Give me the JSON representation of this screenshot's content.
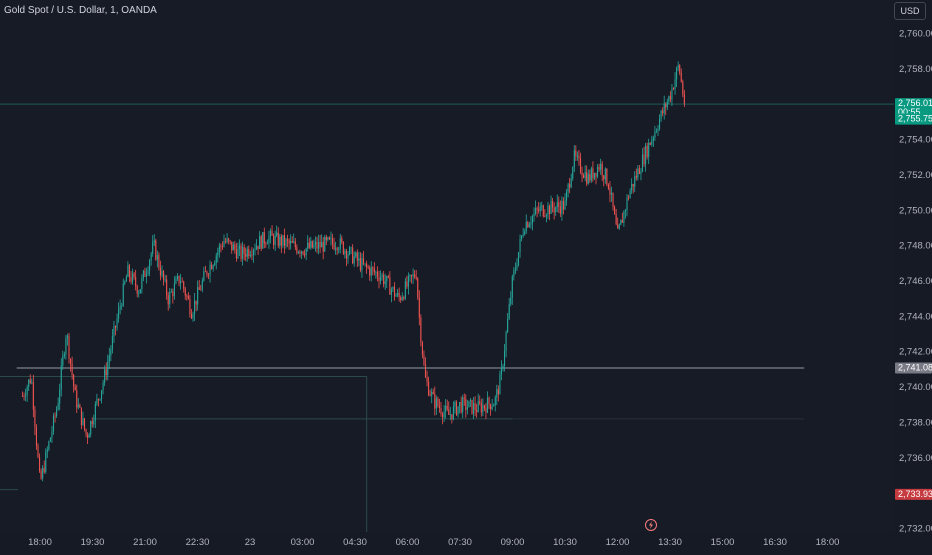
{
  "header": {
    "symbol_title": "Gold Spot / U.S. Dollar, 1, OANDA",
    "currency_button": "USD"
  },
  "colors": {
    "up": "#26a69a",
    "down": "#ef5350",
    "profit_zone": "#1f4a45",
    "loss_zone": "#4a2a32",
    "last_price_badge": "#089981",
    "tp_badge": "#089981",
    "entry_badge": "#787b86",
    "sl_badge": "#c53b40",
    "grid": "#1f2330",
    "price_line": "#26a69a"
  },
  "chart_data": {
    "type": "candlestick",
    "title": "Gold Spot / U.S. Dollar, 1, OANDA",
    "y_axis": {
      "ticks": [
        "2,732.000",
        "2,734.000",
        "2,736.000",
        "2,738.000",
        "2,740.000",
        "2,742.000",
        "2,744.000",
        "2,746.000",
        "2,748.000",
        "2,750.000",
        "2,752.000",
        "2,754.000",
        "2,756.000",
        "2,758.000",
        "2,760.000"
      ],
      "ylim": [
        2731.8,
        2761.9
      ],
      "position": "right"
    },
    "x_axis": {
      "ticks": [
        "18:00",
        "19:30",
        "21:00",
        "22:30",
        "23",
        "03:00",
        "04:30",
        "06:00",
        "07:30",
        "09:00",
        "10:30",
        "12:00",
        "13:30",
        "15:00",
        "16:30",
        "18:00"
      ]
    },
    "price_path": [
      {
        "t": "17:30",
        "p": 2739.5
      },
      {
        "t": "17:45",
        "p": 2740.6
      },
      {
        "t": "18:00",
        "p": 2734.5
      },
      {
        "t": "18:30",
        "p": 2739.0
      },
      {
        "t": "18:45",
        "p": 2743.2
      },
      {
        "t": "19:00",
        "p": 2739.5
      },
      {
        "t": "19:20",
        "p": 2737.2
      },
      {
        "t": "19:50",
        "p": 2740.5
      },
      {
        "t": "20:30",
        "p": 2746.5
      },
      {
        "t": "20:50",
        "p": 2745.5
      },
      {
        "t": "21:15",
        "p": 2748.0
      },
      {
        "t": "21:40",
        "p": 2745.0
      },
      {
        "t": "22:00",
        "p": 2746.2
      },
      {
        "t": "22:20",
        "p": 2744.3
      },
      {
        "t": "22:45",
        "p": 2746.5
      },
      {
        "t": "23:15",
        "p": 2748.3
      },
      {
        "t": "23:45",
        "p": 2747.5
      },
      {
        "t": "00:30",
        "p": 2748.5
      },
      {
        "t": "01:30",
        "p": 2747.8
      },
      {
        "t": "02:30",
        "p": 2748.2
      },
      {
        "t": "03:15",
        "p": 2746.8
      },
      {
        "t": "03:45",
        "p": 2746.3
      },
      {
        "t": "04:15",
        "p": 2745.0
      },
      {
        "t": "04:45",
        "p": 2746.5
      },
      {
        "t": "04:50",
        "p": 2744.0
      },
      {
        "t": "05:00",
        "p": 2740.5
      },
      {
        "t": "05:15",
        "p": 2739.2
      },
      {
        "t": "05:40",
        "p": 2738.4
      },
      {
        "t": "06:00",
        "p": 2739.0
      },
      {
        "t": "06:30",
        "p": 2738.8
      },
      {
        "t": "07:00",
        "p": 2739.2
      },
      {
        "t": "07:10",
        "p": 2740.5
      },
      {
        "t": "07:30",
        "p": 2746.0
      },
      {
        "t": "07:50",
        "p": 2749.2
      },
      {
        "t": "08:15",
        "p": 2750.0
      },
      {
        "t": "09:00",
        "p": 2750.3
      },
      {
        "t": "09:15",
        "p": 2753.0
      },
      {
        "t": "09:40",
        "p": 2751.8
      },
      {
        "t": "10:00",
        "p": 2752.6
      },
      {
        "t": "10:15",
        "p": 2751.5
      },
      {
        "t": "10:30",
        "p": 2748.5
      },
      {
        "t": "10:50",
        "p": 2751.0
      },
      {
        "t": "11:15",
        "p": 2753.0
      },
      {
        "t": "11:40",
        "p": 2755.0
      },
      {
        "t": "12:00",
        "p": 2756.5
      },
      {
        "t": "12:15",
        "p": 2758.2
      },
      {
        "t": "12:25",
        "p": 2756.0
      }
    ],
    "current_price": 2756.01,
    "countdown": "00:55",
    "position_tool": {
      "take_profit": 2755.753,
      "entry": 2741.081,
      "stop_loss": 2733.931,
      "labels": {
        "current": "2,756.010",
        "countdown": "00:55",
        "take_profit": "2,755.753",
        "entry": "2,741.081",
        "stop_loss": "2,733.931"
      }
    },
    "zone_levels": [
      2740.6,
      2738.2
    ],
    "grid": false,
    "event_icon": "lightning-icon"
  }
}
